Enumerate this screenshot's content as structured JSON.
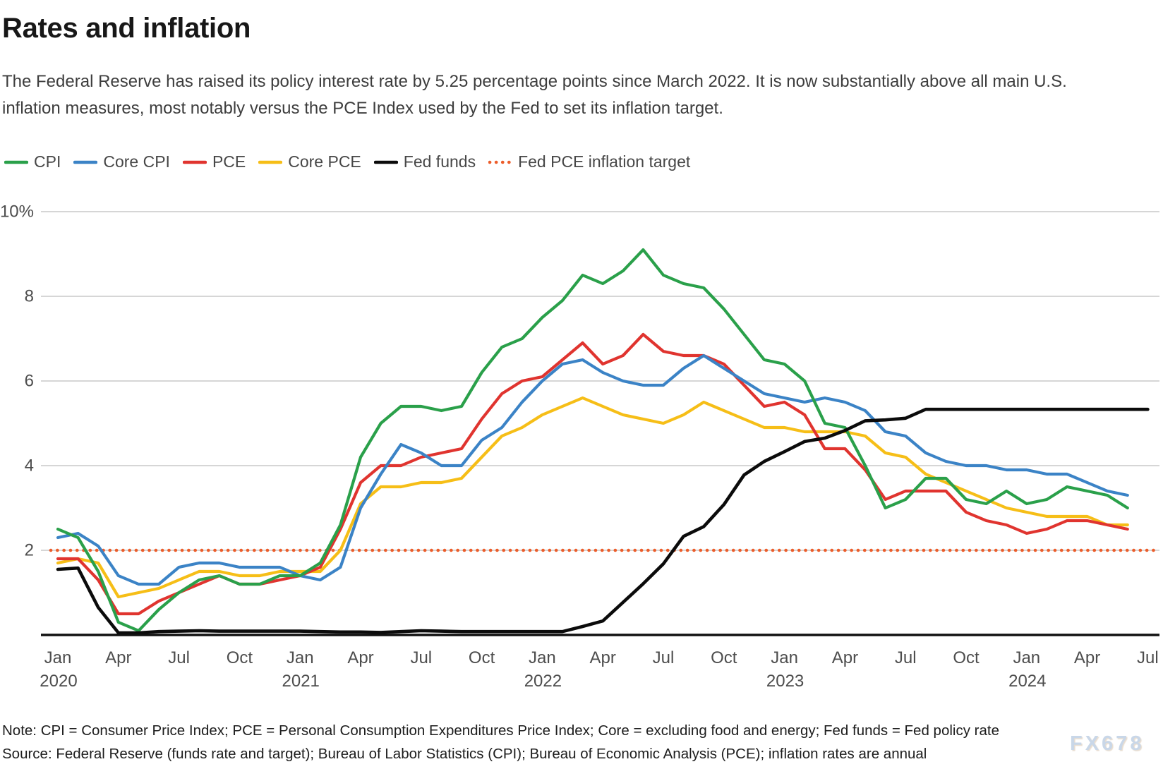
{
  "title": "Rates and inflation",
  "subtitle": "The Federal Reserve has raised its policy interest rate by 5.25 percentage points since March 2022. It is now substantially above all main U.S. inflation measures, most notably versus the PCE Index used by the Fed to set its inflation target.",
  "note": "Note: CPI = Consumer Price Index; PCE = Personal Consumption Expenditures Price Index; Core = excluding food and energy; Fed funds = Fed policy rate",
  "source": "Source: Federal Reserve (funds rate and target); Bureau of Labor Statistics (CPI); Bureau of Economic Analysis (PCE); inflation rates are annual",
  "watermark": "FX678",
  "colors": {
    "cpi": "#2aa04a",
    "core_cpi": "#3b83c6",
    "pce": "#e0342f",
    "core_pce": "#f6be17",
    "fed_funds": "#0b0b0b",
    "target": "#ec5d2a",
    "gridline": "#c9c9c9",
    "axis": "#111111"
  },
  "chart_data": {
    "type": "line",
    "x_frequency": "monthly",
    "x_range": [
      "2020-01",
      "2024-07"
    ],
    "ylim": [
      0,
      10
    ],
    "grid": "horizontal",
    "legend_position": "top",
    "y_ticks": [
      {
        "value": 10,
        "label": "10%"
      },
      {
        "value": 8,
        "label": "8"
      },
      {
        "value": 6,
        "label": "6"
      },
      {
        "value": 4,
        "label": "4"
      },
      {
        "value": 2,
        "label": "2"
      }
    ],
    "x_ticks": [
      {
        "index": 0,
        "label": "Jan",
        "year": "2020"
      },
      {
        "index": 3,
        "label": "Apr"
      },
      {
        "index": 6,
        "label": "Jul"
      },
      {
        "index": 9,
        "label": "Oct"
      },
      {
        "index": 12,
        "label": "Jan",
        "year": "2021"
      },
      {
        "index": 15,
        "label": "Apr"
      },
      {
        "index": 18,
        "label": "Jul"
      },
      {
        "index": 21,
        "label": "Oct"
      },
      {
        "index": 24,
        "label": "Jan",
        "year": "2022"
      },
      {
        "index": 27,
        "label": "Apr"
      },
      {
        "index": 30,
        "label": "Jul"
      },
      {
        "index": 33,
        "label": "Oct"
      },
      {
        "index": 36,
        "label": "Jan",
        "year": "2023"
      },
      {
        "index": 39,
        "label": "Apr"
      },
      {
        "index": 42,
        "label": "Jul"
      },
      {
        "index": 45,
        "label": "Oct"
      },
      {
        "index": 48,
        "label": "Jan",
        "year": "2024"
      },
      {
        "index": 51,
        "label": "Apr"
      },
      {
        "index": 54,
        "label": "Jul"
      }
    ],
    "target_line": {
      "name": "Fed PCE inflation target",
      "value": 2,
      "color": "#ec5d2a",
      "style": "dotted"
    },
    "series": [
      {
        "name": "CPI",
        "color": "#2aa04a",
        "start": "2020-01",
        "values": [
          2.5,
          2.3,
          1.5,
          0.3,
          0.1,
          0.6,
          1.0,
          1.3,
          1.4,
          1.2,
          1.2,
          1.4,
          1.4,
          1.7,
          2.6,
          4.2,
          5.0,
          5.4,
          5.4,
          5.3,
          5.4,
          6.2,
          6.8,
          7.0,
          7.5,
          7.9,
          8.5,
          8.3,
          8.6,
          9.1,
          8.5,
          8.3,
          8.2,
          7.7,
          7.1,
          6.5,
          6.4,
          6.0,
          5.0,
          4.9,
          4.0,
          3.0,
          3.2,
          3.7,
          3.7,
          3.2,
          3.1,
          3.4,
          3.1,
          3.2,
          3.5,
          3.4,
          3.3,
          3.0
        ]
      },
      {
        "name": "Core CPI",
        "color": "#3b83c6",
        "start": "2020-01",
        "values": [
          2.3,
          2.4,
          2.1,
          1.4,
          1.2,
          1.2,
          1.6,
          1.7,
          1.7,
          1.6,
          1.6,
          1.6,
          1.4,
          1.3,
          1.6,
          3.0,
          3.8,
          4.5,
          4.3,
          4.0,
          4.0,
          4.6,
          4.9,
          5.5,
          6.0,
          6.4,
          6.5,
          6.2,
          6.0,
          5.9,
          5.9,
          6.3,
          6.6,
          6.3,
          6.0,
          5.7,
          5.6,
          5.5,
          5.6,
          5.5,
          5.3,
          4.8,
          4.7,
          4.3,
          4.1,
          4.0,
          4.0,
          3.9,
          3.9,
          3.8,
          3.8,
          3.6,
          3.4,
          3.3
        ]
      },
      {
        "name": "PCE",
        "color": "#e0342f",
        "start": "2020-01",
        "values": [
          1.8,
          1.8,
          1.3,
          0.5,
          0.5,
          0.8,
          1.0,
          1.2,
          1.4,
          1.2,
          1.2,
          1.3,
          1.4,
          1.6,
          2.5,
          3.6,
          4.0,
          4.0,
          4.2,
          4.3,
          4.4,
          5.1,
          5.7,
          6.0,
          6.1,
          6.5,
          6.9,
          6.4,
          6.6,
          7.1,
          6.7,
          6.6,
          6.6,
          6.4,
          5.9,
          5.4,
          5.5,
          5.2,
          4.4,
          4.4,
          3.9,
          3.2,
          3.4,
          3.4,
          3.4,
          2.9,
          2.7,
          2.6,
          2.4,
          2.5,
          2.7,
          2.7,
          2.6,
          2.5
        ]
      },
      {
        "name": "Core PCE",
        "color": "#f6be17",
        "start": "2020-01",
        "values": [
          1.7,
          1.8,
          1.7,
          0.9,
          1.0,
          1.1,
          1.3,
          1.5,
          1.5,
          1.4,
          1.4,
          1.5,
          1.5,
          1.5,
          2.0,
          3.1,
          3.5,
          3.5,
          3.6,
          3.6,
          3.7,
          4.2,
          4.7,
          4.9,
          5.2,
          5.4,
          5.6,
          5.4,
          5.2,
          5.1,
          5.0,
          5.2,
          5.5,
          5.3,
          5.1,
          4.9,
          4.9,
          4.8,
          4.8,
          4.8,
          4.7,
          4.3,
          4.2,
          3.8,
          3.6,
          3.4,
          3.2,
          3.0,
          2.9,
          2.8,
          2.8,
          2.8,
          2.6,
          2.6
        ]
      },
      {
        "name": "Fed funds",
        "color": "#0b0b0b",
        "start": "2020-01",
        "values": [
          1.55,
          1.58,
          0.65,
          0.05,
          0.05,
          0.08,
          0.09,
          0.1,
          0.09,
          0.09,
          0.09,
          0.09,
          0.09,
          0.08,
          0.07,
          0.07,
          0.06,
          0.08,
          0.1,
          0.09,
          0.08,
          0.08,
          0.08,
          0.08,
          0.08,
          0.08,
          0.2,
          0.33,
          0.77,
          1.21,
          1.68,
          2.33,
          2.56,
          3.08,
          3.78,
          4.1,
          4.33,
          4.57,
          4.65,
          4.83,
          5.06,
          5.08,
          5.12,
          5.33,
          5.33,
          5.33,
          5.33,
          5.33,
          5.33,
          5.33,
          5.33,
          5.33,
          5.33,
          5.33,
          5.33
        ]
      }
    ]
  }
}
